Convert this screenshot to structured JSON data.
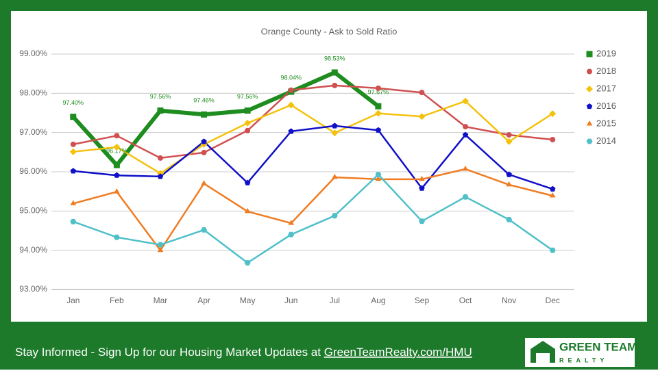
{
  "chart_data": {
    "type": "line",
    "title": "Orange County - Ask to Sold Ratio",
    "categories": [
      "Jan",
      "Feb",
      "Mar",
      "Apr",
      "May",
      "Jun",
      "Jul",
      "Aug",
      "Sep",
      "Oct",
      "Nov",
      "Dec"
    ],
    "ylim": [
      93,
      99
    ],
    "yticks": [
      {
        "value": 93,
        "label": "93.00%"
      },
      {
        "value": 94,
        "label": "94.00%"
      },
      {
        "value": 95,
        "label": "95.00%"
      },
      {
        "value": 96,
        "label": "96.00%"
      },
      {
        "value": 97,
        "label": "97.00%"
      },
      {
        "value": 98,
        "label": "98.00%"
      },
      {
        "value": 99,
        "label": "99.00%"
      }
    ],
    "grid": true,
    "legend": "right",
    "series": [
      {
        "name": "2019",
        "color": "#1e8c1e",
        "marker": "square",
        "width": 6,
        "values": [
          97.4,
          96.17,
          97.56,
          97.46,
          97.56,
          98.04,
          98.53,
          97.67,
          null,
          null,
          null,
          null
        ],
        "value_labels": [
          "97.40%",
          "96.17%",
          "97.56%",
          "97.46%",
          "97.56%",
          "98.04%",
          "98.53%",
          "97.67%",
          null,
          null,
          null,
          null
        ]
      },
      {
        "name": "2018",
        "color": "#d05050",
        "marker": "circle",
        "width": 2.5,
        "values": [
          96.7,
          96.92,
          96.35,
          96.49,
          97.05,
          98.08,
          98.2,
          98.13,
          98.02,
          97.15,
          96.94,
          96.82
        ]
      },
      {
        "name": "2017",
        "color": "#f4c20d",
        "marker": "diamond",
        "width": 2.5,
        "values": [
          96.51,
          96.63,
          95.96,
          96.7,
          97.24,
          97.7,
          96.99,
          97.49,
          97.41,
          97.8,
          96.77,
          97.48
        ]
      },
      {
        "name": "2016",
        "color": "#1010c8",
        "marker": "pentagon",
        "width": 2.5,
        "values": [
          96.02,
          95.91,
          95.88,
          96.77,
          95.72,
          97.03,
          97.17,
          97.06,
          95.58,
          96.94,
          95.93,
          95.56
        ]
      },
      {
        "name": "2015",
        "color": "#f07c22",
        "marker": "triangle",
        "width": 2.5,
        "values": [
          95.19,
          95.49,
          94.0,
          95.7,
          94.99,
          94.69,
          95.86,
          95.81,
          95.81,
          96.07,
          95.67,
          95.39
        ]
      },
      {
        "name": "2014",
        "color": "#4fc0c8",
        "marker": "hexagon",
        "width": 2.5,
        "values": [
          94.73,
          94.33,
          94.14,
          94.52,
          93.68,
          94.4,
          94.88,
          95.93,
          94.74,
          95.36,
          94.78,
          94.0
        ]
      }
    ]
  },
  "footer": {
    "text": "Stay Informed - Sign Up for our Housing Market Updates at ",
    "link": "GreenTeamRealty.com/HMU"
  },
  "logo": {
    "name": "GREEN TEAM",
    "sub": "REALTY"
  }
}
